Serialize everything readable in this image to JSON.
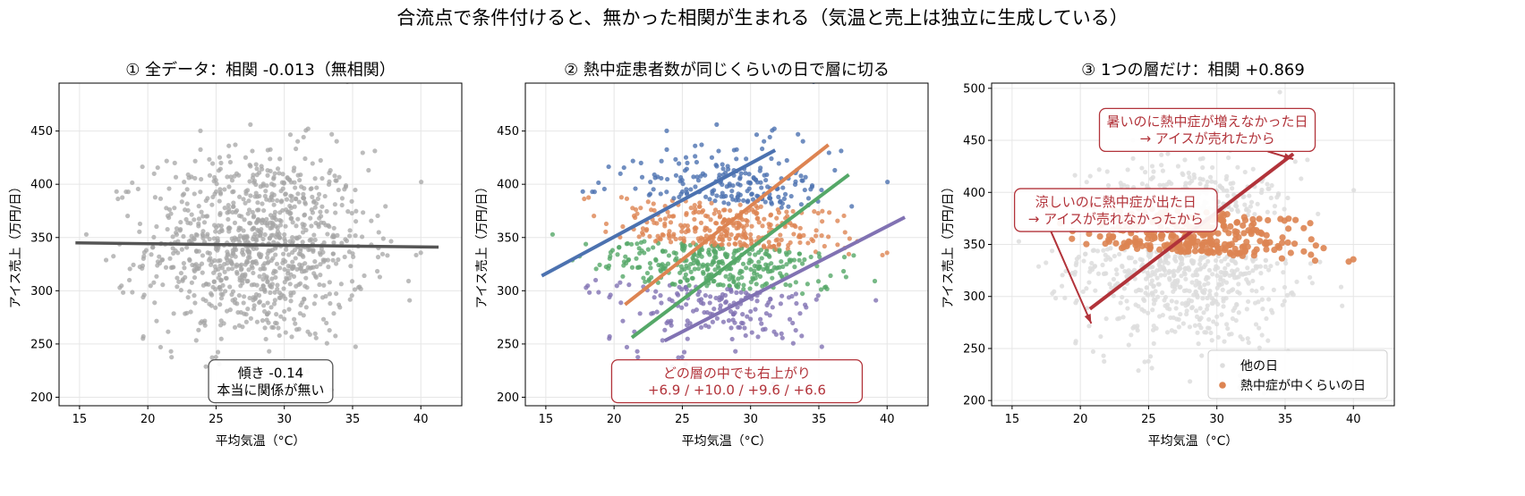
{
  "figure_title": "合流点で条件付けると、無かった相関が生まれる（気温と売上は独立に生成している）",
  "colors": {
    "gray_points": "#a6a6a6",
    "gray_line": "#555555",
    "blue": "#4c72b0",
    "orange": "#dd8452",
    "green": "#55a868",
    "purple": "#8172b3",
    "red_annotation": "#b2333a",
    "light_gray_points": "#dddddd"
  },
  "chart_data": [
    {
      "type": "scatter",
      "title": "① 全データ：相関 -0.013（無相関）",
      "xlabel": "平均気温（°C）",
      "ylabel": "アイス売上（万円/日）",
      "xlim": [
        13.5,
        43
      ],
      "ylim": [
        192,
        495
      ],
      "xticks": [
        15,
        20,
        25,
        30,
        35,
        40
      ],
      "yticks": [
        200,
        250,
        300,
        350,
        400,
        450
      ],
      "grid": true,
      "series": [
        {
          "style": "gray_points",
          "n_points": 1000,
          "x_mean": 28,
          "x_sd": 4,
          "y_mean": 342,
          "y_sd": 45
        }
      ],
      "fit_lines": [
        {
          "style": "gray_line",
          "x": [
            14.7,
            41.3
          ],
          "y": [
            345,
            341
          ]
        }
      ],
      "annotations": [
        {
          "lines": [
            "傾き -0.14",
            "本当に関係が無い"
          ],
          "style": "gray_box",
          "pos": [
            29,
            215
          ]
        }
      ]
    },
    {
      "type": "scatter",
      "title": "② 熱中症患者数が同じくらいの日で層に切る",
      "xlabel": "平均気温（°C）",
      "ylabel": "アイス売上（万円/日）",
      "xlim": [
        13.5,
        43
      ],
      "ylim": [
        192,
        495
      ],
      "xticks": [
        15,
        20,
        25,
        30,
        35,
        40
      ],
      "yticks": [
        200,
        250,
        300,
        350,
        400,
        450
      ],
      "grid": true,
      "strata": [
        {
          "style": "blue",
          "slope": 6.9,
          "fit_x": [
            14.7,
            31.8
          ],
          "fit_y": [
            314,
            432
          ]
        },
        {
          "style": "orange",
          "slope": 10.0,
          "fit_x": [
            20.8,
            35.7
          ],
          "fit_y": [
            287,
            437
          ]
        },
        {
          "style": "green",
          "slope": 9.6,
          "fit_x": [
            21.3,
            37.2
          ],
          "fit_y": [
            256,
            409
          ]
        },
        {
          "style": "purple",
          "slope": 6.6,
          "fit_x": [
            23.7,
            41.3
          ],
          "fit_y": [
            253,
            369
          ]
        }
      ],
      "annotations": [
        {
          "lines": [
            "どの層の中でも右上がり",
            "+6.9 / +10.0 / +9.6 / +6.6"
          ],
          "style": "red_box",
          "pos": [
            29,
            215
          ]
        }
      ]
    },
    {
      "type": "scatter",
      "title": "③ 1つの層だけ：相関 +0.869",
      "xlabel": "平均気温（°C）",
      "ylabel": "アイス売上（万円/日）",
      "xlim": [
        13.5,
        43
      ],
      "ylim": [
        195,
        505
      ],
      "xticks": [
        15,
        20,
        25,
        30,
        35,
        40
      ],
      "yticks": [
        200,
        250,
        300,
        350,
        400,
        450,
        500
      ],
      "grid": true,
      "series": [
        {
          "name": "他の日",
          "style": "light_gray_points"
        },
        {
          "name": "熱中症が中くらいの日",
          "style": "orange"
        }
      ],
      "fit_lines": [
        {
          "style": "red_annotation",
          "x": [
            20.7,
            35.6
          ],
          "y": [
            288,
            437
          ]
        }
      ],
      "annotations": [
        {
          "lines": [
            "暑いのに熱中症が増えなかった日",
            "→ アイスが売れたから"
          ],
          "style": "red_box",
          "pos": [
            29.3,
            460
          ],
          "arrow_to": [
            35.6,
            432
          ]
        },
        {
          "lines": [
            "涼しいのに熱中症が出た日",
            "→ アイスが売れなかったから"
          ],
          "style": "red_box",
          "pos": [
            22.6,
            383
          ],
          "arrow_to": [
            20.8,
            274
          ]
        }
      ],
      "legend_position": "lower-right"
    }
  ]
}
